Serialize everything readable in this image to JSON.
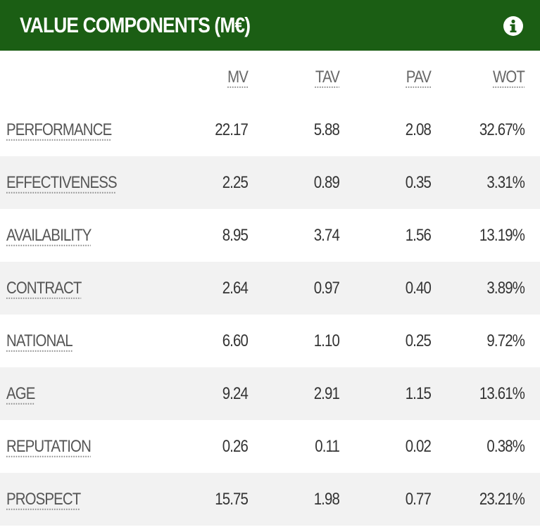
{
  "header": {
    "title": "VALUE COMPONENTS (M€)"
  },
  "table": {
    "columns": [
      "MV",
      "TAV",
      "PAV",
      "WOT"
    ],
    "rows": [
      {
        "label": "PERFORMANCE",
        "cells": [
          "22.17",
          "5.88",
          "2.08",
          "32.67%"
        ]
      },
      {
        "label": "EFFECTIVENESS",
        "cells": [
          "2.25",
          "0.89",
          "0.35",
          "3.31%"
        ]
      },
      {
        "label": "AVAILABILITY",
        "cells": [
          "8.95",
          "3.74",
          "1.56",
          "13.19%"
        ]
      },
      {
        "label": "CONTRACT",
        "cells": [
          "2.64",
          "0.97",
          "0.40",
          "3.89%"
        ]
      },
      {
        "label": "NATIONAL",
        "cells": [
          "6.60",
          "1.10",
          "0.25",
          "9.72%"
        ]
      },
      {
        "label": "AGE",
        "cells": [
          "9.24",
          "2.91",
          "1.15",
          "13.61%"
        ]
      },
      {
        "label": "REPUTATION",
        "cells": [
          "0.26",
          "0.11",
          "0.02",
          "0.38%"
        ]
      },
      {
        "label": "PROSPECT",
        "cells": [
          "15.75",
          "1.98",
          "0.77",
          "23.21%"
        ]
      }
    ]
  }
}
